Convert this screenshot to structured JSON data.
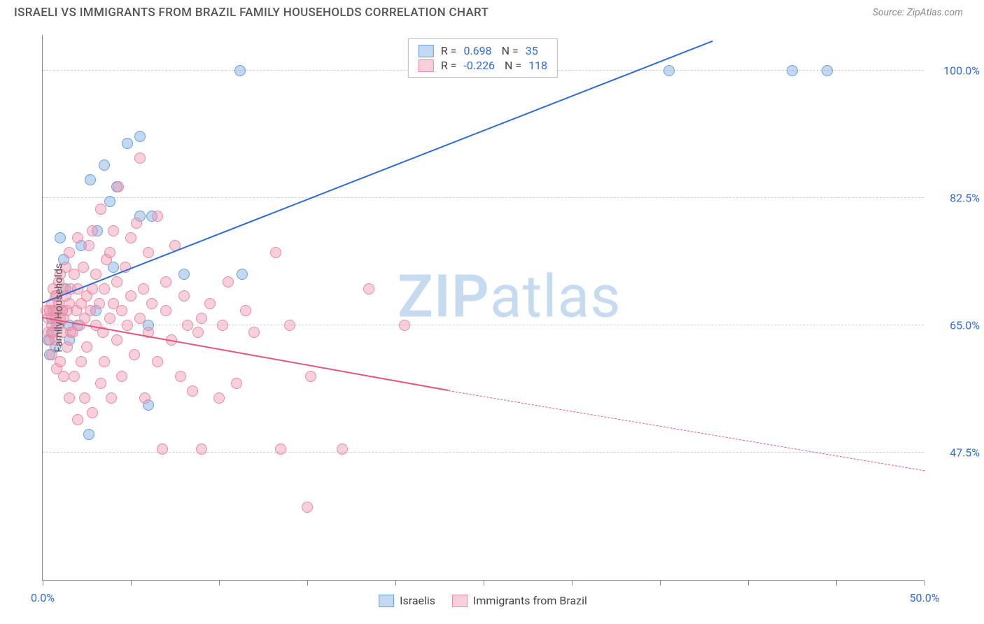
{
  "header": {
    "title": "ISRAELI VS IMMIGRANTS FROM BRAZIL FAMILY HOUSEHOLDS CORRELATION CHART",
    "source": "Source: ZipAtlas.com"
  },
  "watermark": {
    "text1": "ZIP",
    "text2": "atlas",
    "color": "#c7dbf0"
  },
  "chart": {
    "type": "scatter",
    "y_axis_label": "Family Households",
    "xlim": [
      0,
      50
    ],
    "ylim": [
      30,
      105
    ],
    "x_ticks": [
      0,
      5,
      10,
      15,
      20,
      25,
      30,
      35,
      40,
      45,
      50
    ],
    "x_tick_labels": {
      "0": "0.0%",
      "50": "50.0%"
    },
    "x_label_color": "#2e6bd6",
    "y_grid": [
      47.5,
      65.0,
      82.5,
      100.0
    ],
    "y_tick_labels": [
      "47.5%",
      "65.0%",
      "82.5%",
      "100.0%"
    ],
    "y_label_color": "#2e6bd6",
    "grid_color": "#d0d0d0",
    "background_color": "#ffffff",
    "series": [
      {
        "name": "Israelis",
        "fill": "rgba(120,170,225,0.45)",
        "stroke": "#6a9edb",
        "line_color": "#2e6bd6",
        "marker_size": 16,
        "R": "0.698",
        "N": "35",
        "trend": {
          "x1": 0,
          "y1": 68,
          "x2": 38,
          "y2": 104,
          "dash_x2": 38,
          "dash_y2": 104
        },
        "points": [
          [
            0.3,
            63
          ],
          [
            0.5,
            64
          ],
          [
            0.5,
            66
          ],
          [
            0.4,
            61
          ],
          [
            0.7,
            62
          ],
          [
            0.6,
            67
          ],
          [
            0.8,
            65
          ],
          [
            1.0,
            77
          ],
          [
            1.2,
            74
          ],
          [
            1.1,
            67
          ],
          [
            1.5,
            63
          ],
          [
            1.5,
            65
          ],
          [
            1.3,
            70
          ],
          [
            2.0,
            65
          ],
          [
            2.2,
            76
          ],
          [
            2.6,
            50
          ],
          [
            2.7,
            85
          ],
          [
            3.1,
            78
          ],
          [
            3.0,
            67
          ],
          [
            3.5,
            87
          ],
          [
            3.8,
            82
          ],
          [
            4.0,
            73
          ],
          [
            4.2,
            84
          ],
          [
            4.8,
            90
          ],
          [
            5.5,
            91
          ],
          [
            5.5,
            80
          ],
          [
            6.0,
            65
          ],
          [
            6.2,
            80
          ],
          [
            6.0,
            54
          ],
          [
            8.0,
            72
          ],
          [
            11.2,
            100
          ],
          [
            11.3,
            72
          ],
          [
            35.5,
            100
          ],
          [
            42.5,
            100
          ],
          [
            44.5,
            100
          ]
        ]
      },
      {
        "name": "Immigrants from Brazil",
        "fill": "rgba(240,150,175,0.45)",
        "stroke": "#e88aa5",
        "line_color": "#e4557e",
        "marker_size": 16,
        "R": "-0.226",
        "N": "118",
        "trend": {
          "x1": 0,
          "y1": 66,
          "x2": 23,
          "y2": 56,
          "dash_x2": 50,
          "dash_y2": 45
        },
        "points": [
          [
            0.2,
            67
          ],
          [
            0.3,
            66
          ],
          [
            0.3,
            64
          ],
          [
            0.4,
            67
          ],
          [
            0.4,
            63
          ],
          [
            0.5,
            68
          ],
          [
            0.5,
            65
          ],
          [
            0.5,
            61
          ],
          [
            0.6,
            67
          ],
          [
            0.6,
            70
          ],
          [
            0.6,
            64
          ],
          [
            0.7,
            69
          ],
          [
            0.7,
            66
          ],
          [
            0.7,
            63
          ],
          [
            0.8,
            69
          ],
          [
            0.8,
            67
          ],
          [
            0.8,
            59
          ],
          [
            0.9,
            68
          ],
          [
            0.9,
            65
          ],
          [
            0.9,
            71
          ],
          [
            1.0,
            72
          ],
          [
            1.0,
            66
          ],
          [
            1.0,
            60
          ],
          [
            1.1,
            67
          ],
          [
            1.1,
            64
          ],
          [
            1.2,
            70
          ],
          [
            1.2,
            66
          ],
          [
            1.2,
            58
          ],
          [
            1.3,
            69
          ],
          [
            1.3,
            73
          ],
          [
            1.4,
            67
          ],
          [
            1.4,
            62
          ],
          [
            1.5,
            75
          ],
          [
            1.5,
            68
          ],
          [
            1.5,
            55
          ],
          [
            1.6,
            70
          ],
          [
            1.6,
            64
          ],
          [
            1.7,
            64
          ],
          [
            1.8,
            72
          ],
          [
            1.8,
            58
          ],
          [
            1.9,
            67
          ],
          [
            2.0,
            77
          ],
          [
            2.0,
            70
          ],
          [
            2.0,
            52
          ],
          [
            2.1,
            65
          ],
          [
            2.2,
            68
          ],
          [
            2.2,
            60
          ],
          [
            2.3,
            73
          ],
          [
            2.4,
            66
          ],
          [
            2.4,
            55
          ],
          [
            2.5,
            69
          ],
          [
            2.5,
            62
          ],
          [
            2.6,
            76
          ],
          [
            2.7,
            67
          ],
          [
            2.8,
            70
          ],
          [
            2.8,
            53
          ],
          [
            2.8,
            78
          ],
          [
            3.0,
            65
          ],
          [
            3.0,
            72
          ],
          [
            3.2,
            68
          ],
          [
            3.3,
            81
          ],
          [
            3.3,
            57
          ],
          [
            3.4,
            64
          ],
          [
            3.5,
            70
          ],
          [
            3.5,
            60
          ],
          [
            3.6,
            74
          ],
          [
            3.8,
            66
          ],
          [
            3.8,
            75
          ],
          [
            3.9,
            55
          ],
          [
            4.0,
            68
          ],
          [
            4.0,
            78
          ],
          [
            4.2,
            63
          ],
          [
            4.2,
            71
          ],
          [
            4.3,
            84
          ],
          [
            4.5,
            67
          ],
          [
            4.5,
            58
          ],
          [
            4.7,
            73
          ],
          [
            4.8,
            65
          ],
          [
            5.0,
            77
          ],
          [
            5.0,
            69
          ],
          [
            5.2,
            61
          ],
          [
            5.3,
            79
          ],
          [
            5.5,
            88
          ],
          [
            5.5,
            66
          ],
          [
            5.7,
            70
          ],
          [
            5.8,
            55
          ],
          [
            6.0,
            64
          ],
          [
            6.0,
            75
          ],
          [
            6.2,
            68
          ],
          [
            6.5,
            60
          ],
          [
            6.5,
            80
          ],
          [
            6.8,
            48
          ],
          [
            7.0,
            67
          ],
          [
            7.0,
            71
          ],
          [
            7.3,
            63
          ],
          [
            7.5,
            76
          ],
          [
            7.8,
            58
          ],
          [
            8.0,
            69
          ],
          [
            8.2,
            65
          ],
          [
            8.5,
            56
          ],
          [
            8.8,
            64
          ],
          [
            9.0,
            66
          ],
          [
            9.0,
            48
          ],
          [
            9.5,
            68
          ],
          [
            10.0,
            55
          ],
          [
            10.2,
            65
          ],
          [
            10.5,
            71
          ],
          [
            11.0,
            57
          ],
          [
            11.5,
            67
          ],
          [
            12.0,
            64
          ],
          [
            13.2,
            75
          ],
          [
            13.5,
            48
          ],
          [
            14.0,
            65
          ],
          [
            15.0,
            40
          ],
          [
            15.2,
            58
          ],
          [
            17.0,
            48
          ],
          [
            18.5,
            70
          ],
          [
            20.5,
            65
          ]
        ]
      }
    ],
    "legend_top": {
      "label_color": "#444",
      "value_color": "#2e6bd6"
    },
    "legend_bottom": [
      {
        "label": "Israelis"
      },
      {
        "label": "Immigrants from Brazil"
      }
    ]
  }
}
